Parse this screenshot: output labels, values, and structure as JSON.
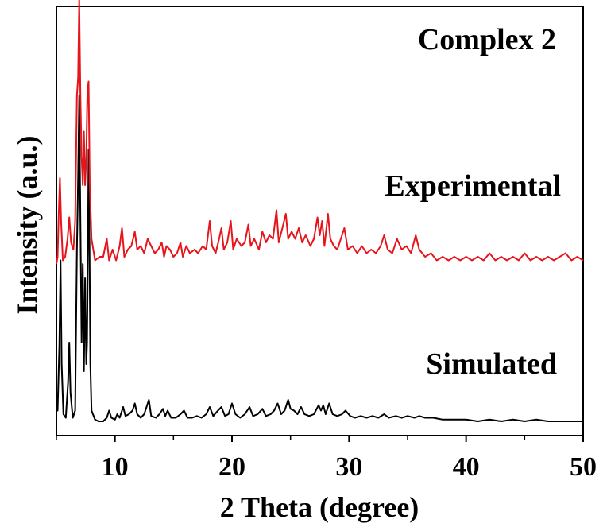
{
  "chart_data": {
    "type": "line",
    "title": "Complex 2",
    "xlabel": "2 Theta (degree)",
    "ylabel": "Intensity (a.u.)",
    "xlim": [
      5,
      50
    ],
    "ylim": [
      0,
      1.2
    ],
    "x_ticks": [
      10,
      20,
      30,
      40,
      50
    ],
    "x_tick_labels": [
      "10",
      "20",
      "30",
      "40",
      "50"
    ],
    "y_ticks_shown": false,
    "grid": false,
    "legend": "none",
    "series": [
      {
        "name": "Simulated",
        "color": "#000000",
        "baseline": 0.045,
        "points": [
          [
            5.0,
            0.08
          ],
          [
            5.1,
            0.07
          ],
          [
            5.25,
            0.25
          ],
          [
            5.35,
            0.49
          ],
          [
            5.45,
            0.2
          ],
          [
            5.6,
            0.06
          ],
          [
            5.8,
            0.05
          ],
          [
            6.0,
            0.15
          ],
          [
            6.1,
            0.26
          ],
          [
            6.2,
            0.12
          ],
          [
            6.4,
            0.05
          ],
          [
            6.6,
            0.07
          ],
          [
            6.75,
            0.52
          ],
          [
            6.85,
            0.72
          ],
          [
            6.95,
            0.95
          ],
          [
            7.05,
            0.6
          ],
          [
            7.15,
            0.26
          ],
          [
            7.25,
            0.48
          ],
          [
            7.35,
            0.18
          ],
          [
            7.45,
            0.44
          ],
          [
            7.55,
            0.2
          ],
          [
            7.62,
            0.26
          ],
          [
            7.7,
            0.56
          ],
          [
            7.75,
            0.8
          ],
          [
            7.82,
            0.58
          ],
          [
            7.9,
            0.2
          ],
          [
            8.0,
            0.07
          ],
          [
            8.3,
            0.045
          ],
          [
            8.6,
            0.04
          ],
          [
            9.0,
            0.04
          ],
          [
            9.3,
            0.05
          ],
          [
            9.5,
            0.07
          ],
          [
            9.7,
            0.05
          ],
          [
            10.0,
            0.045
          ],
          [
            10.2,
            0.06
          ],
          [
            10.4,
            0.05
          ],
          [
            10.7,
            0.08
          ],
          [
            10.9,
            0.055
          ],
          [
            11.2,
            0.06
          ],
          [
            11.5,
            0.07
          ],
          [
            11.7,
            0.09
          ],
          [
            11.9,
            0.06
          ],
          [
            12.2,
            0.05
          ],
          [
            12.5,
            0.06
          ],
          [
            12.9,
            0.1
          ],
          [
            13.1,
            0.055
          ],
          [
            13.5,
            0.05
          ],
          [
            13.8,
            0.06
          ],
          [
            14.1,
            0.075
          ],
          [
            14.3,
            0.055
          ],
          [
            14.5,
            0.07
          ],
          [
            14.8,
            0.05
          ],
          [
            15.2,
            0.05
          ],
          [
            15.6,
            0.06
          ],
          [
            15.9,
            0.07
          ],
          [
            16.2,
            0.05
          ],
          [
            16.6,
            0.05
          ],
          [
            17.0,
            0.055
          ],
          [
            17.4,
            0.05
          ],
          [
            17.8,
            0.06
          ],
          [
            18.1,
            0.08
          ],
          [
            18.4,
            0.055
          ],
          [
            18.8,
            0.07
          ],
          [
            19.1,
            0.08
          ],
          [
            19.4,
            0.055
          ],
          [
            19.7,
            0.06
          ],
          [
            20.0,
            0.09
          ],
          [
            20.3,
            0.06
          ],
          [
            20.7,
            0.05
          ],
          [
            21.1,
            0.06
          ],
          [
            21.5,
            0.08
          ],
          [
            21.8,
            0.055
          ],
          [
            22.2,
            0.06
          ],
          [
            22.6,
            0.075
          ],
          [
            22.9,
            0.055
          ],
          [
            23.3,
            0.06
          ],
          [
            23.6,
            0.07
          ],
          [
            23.9,
            0.09
          ],
          [
            24.2,
            0.06
          ],
          [
            24.5,
            0.07
          ],
          [
            24.8,
            0.1
          ],
          [
            25.0,
            0.075
          ],
          [
            25.3,
            0.07
          ],
          [
            25.6,
            0.06
          ],
          [
            25.9,
            0.08
          ],
          [
            26.2,
            0.06
          ],
          [
            26.6,
            0.055
          ],
          [
            27.0,
            0.06
          ],
          [
            27.4,
            0.085
          ],
          [
            27.6,
            0.07
          ],
          [
            27.8,
            0.085
          ],
          [
            28.0,
            0.06
          ],
          [
            28.3,
            0.09
          ],
          [
            28.6,
            0.06
          ],
          [
            29.0,
            0.055
          ],
          [
            29.4,
            0.06
          ],
          [
            29.7,
            0.07
          ],
          [
            30.1,
            0.055
          ],
          [
            30.5,
            0.05
          ],
          [
            31.0,
            0.055
          ],
          [
            31.5,
            0.05
          ],
          [
            32.0,
            0.055
          ],
          [
            32.5,
            0.05
          ],
          [
            33.0,
            0.06
          ],
          [
            33.4,
            0.05
          ],
          [
            34.0,
            0.055
          ],
          [
            34.5,
            0.05
          ],
          [
            35.0,
            0.055
          ],
          [
            35.6,
            0.05
          ],
          [
            36.0,
            0.055
          ],
          [
            36.5,
            0.05
          ],
          [
            37.2,
            0.05
          ],
          [
            38.0,
            0.045
          ],
          [
            39.0,
            0.045
          ],
          [
            40.0,
            0.045
          ],
          [
            41.0,
            0.04
          ],
          [
            42.0,
            0.045
          ],
          [
            43.0,
            0.04
          ],
          [
            44.0,
            0.045
          ],
          [
            45.0,
            0.04
          ],
          [
            46.0,
            0.045
          ],
          [
            47.0,
            0.04
          ],
          [
            48.0,
            0.04
          ],
          [
            49.0,
            0.04
          ],
          [
            50.0,
            0.04
          ]
        ]
      },
      {
        "name": "Experimental",
        "color": "#e8141b",
        "baseline": 0.48,
        "points": [
          [
            5.0,
            0.48
          ],
          [
            5.1,
            0.5
          ],
          [
            5.2,
            0.62
          ],
          [
            5.3,
            0.72
          ],
          [
            5.4,
            0.6
          ],
          [
            5.55,
            0.49
          ],
          [
            5.75,
            0.5
          ],
          [
            5.95,
            0.55
          ],
          [
            6.1,
            0.61
          ],
          [
            6.25,
            0.54
          ],
          [
            6.45,
            0.52
          ],
          [
            6.6,
            0.6
          ],
          [
            6.75,
            0.95
          ],
          [
            6.85,
            1.0
          ],
          [
            6.95,
            1.22
          ],
          [
            7.05,
            0.95
          ],
          [
            7.15,
            0.78
          ],
          [
            7.25,
            0.7
          ],
          [
            7.35,
            0.85
          ],
          [
            7.45,
            0.7
          ],
          [
            7.55,
            0.78
          ],
          [
            7.65,
            0.96
          ],
          [
            7.75,
            0.99
          ],
          [
            7.85,
            0.7
          ],
          [
            8.0,
            0.55
          ],
          [
            8.3,
            0.49
          ],
          [
            8.7,
            0.5
          ],
          [
            9.0,
            0.5
          ],
          [
            9.3,
            0.55
          ],
          [
            9.5,
            0.49
          ],
          [
            9.8,
            0.52
          ],
          [
            10.1,
            0.49
          ],
          [
            10.4,
            0.53
          ],
          [
            10.6,
            0.58
          ],
          [
            10.8,
            0.5
          ],
          [
            11.1,
            0.52
          ],
          [
            11.4,
            0.53
          ],
          [
            11.7,
            0.57
          ],
          [
            11.9,
            0.52
          ],
          [
            12.2,
            0.53
          ],
          [
            12.5,
            0.51
          ],
          [
            12.8,
            0.55
          ],
          [
            13.1,
            0.53
          ],
          [
            13.4,
            0.51
          ],
          [
            13.7,
            0.52
          ],
          [
            14.0,
            0.54
          ],
          [
            14.2,
            0.5
          ],
          [
            14.4,
            0.53
          ],
          [
            14.7,
            0.52
          ],
          [
            15.0,
            0.5
          ],
          [
            15.3,
            0.51
          ],
          [
            15.6,
            0.54
          ],
          [
            15.8,
            0.5
          ],
          [
            16.1,
            0.53
          ],
          [
            16.4,
            0.51
          ],
          [
            16.8,
            0.52
          ],
          [
            17.1,
            0.51
          ],
          [
            17.5,
            0.53
          ],
          [
            17.8,
            0.52
          ],
          [
            18.1,
            0.6
          ],
          [
            18.3,
            0.53
          ],
          [
            18.6,
            0.51
          ],
          [
            18.9,
            0.55
          ],
          [
            19.1,
            0.58
          ],
          [
            19.3,
            0.52
          ],
          [
            19.6,
            0.54
          ],
          [
            19.9,
            0.6
          ],
          [
            20.1,
            0.52
          ],
          [
            20.4,
            0.55
          ],
          [
            20.8,
            0.53
          ],
          [
            21.1,
            0.54
          ],
          [
            21.4,
            0.59
          ],
          [
            21.6,
            0.53
          ],
          [
            21.9,
            0.55
          ],
          [
            22.3,
            0.52
          ],
          [
            22.6,
            0.57
          ],
          [
            22.9,
            0.54
          ],
          [
            23.2,
            0.56
          ],
          [
            23.5,
            0.55
          ],
          [
            23.8,
            0.63
          ],
          [
            24.0,
            0.54
          ],
          [
            24.3,
            0.58
          ],
          [
            24.6,
            0.62
          ],
          [
            24.8,
            0.55
          ],
          [
            25.1,
            0.57
          ],
          [
            25.4,
            0.55
          ],
          [
            25.7,
            0.58
          ],
          [
            26.0,
            0.54
          ],
          [
            26.3,
            0.56
          ],
          [
            26.7,
            0.53
          ],
          [
            27.0,
            0.55
          ],
          [
            27.3,
            0.61
          ],
          [
            27.5,
            0.56
          ],
          [
            27.7,
            0.6
          ],
          [
            27.9,
            0.53
          ],
          [
            28.2,
            0.62
          ],
          [
            28.4,
            0.55
          ],
          [
            28.7,
            0.53
          ],
          [
            29.0,
            0.52
          ],
          [
            29.3,
            0.55
          ],
          [
            29.6,
            0.58
          ],
          [
            29.9,
            0.52
          ],
          [
            30.3,
            0.53
          ],
          [
            30.7,
            0.51
          ],
          [
            31.1,
            0.53
          ],
          [
            31.5,
            0.51
          ],
          [
            31.9,
            0.52
          ],
          [
            32.3,
            0.51
          ],
          [
            32.7,
            0.53
          ],
          [
            33.0,
            0.56
          ],
          [
            33.3,
            0.52
          ],
          [
            33.7,
            0.51
          ],
          [
            34.1,
            0.55
          ],
          [
            34.5,
            0.52
          ],
          [
            34.9,
            0.53
          ],
          [
            35.3,
            0.51
          ],
          [
            35.7,
            0.56
          ],
          [
            36.0,
            0.52
          ],
          [
            36.5,
            0.5
          ],
          [
            37.0,
            0.51
          ],
          [
            37.5,
            0.49
          ],
          [
            38.0,
            0.5
          ],
          [
            38.5,
            0.49
          ],
          [
            39.0,
            0.5
          ],
          [
            39.5,
            0.49
          ],
          [
            40.0,
            0.5
          ],
          [
            40.5,
            0.49
          ],
          [
            41.0,
            0.5
          ],
          [
            41.5,
            0.49
          ],
          [
            42.0,
            0.51
          ],
          [
            42.5,
            0.49
          ],
          [
            43.0,
            0.5
          ],
          [
            43.5,
            0.49
          ],
          [
            44.0,
            0.5
          ],
          [
            44.5,
            0.49
          ],
          [
            45.0,
            0.51
          ],
          [
            45.5,
            0.49
          ],
          [
            46.0,
            0.5
          ],
          [
            46.5,
            0.49
          ],
          [
            47.0,
            0.5
          ],
          [
            47.5,
            0.49
          ],
          [
            48.0,
            0.5
          ],
          [
            48.5,
            0.51
          ],
          [
            49.0,
            0.49
          ],
          [
            49.5,
            0.5
          ],
          [
            50.0,
            0.49
          ]
        ]
      }
    ],
    "annotations": [
      {
        "text": "Complex 2",
        "anchor": "top-right"
      },
      {
        "text": "Experimental",
        "anchor": "right-of-experimental-trace"
      },
      {
        "text": "Simulated",
        "anchor": "right-of-simulated-trace"
      }
    ]
  }
}
